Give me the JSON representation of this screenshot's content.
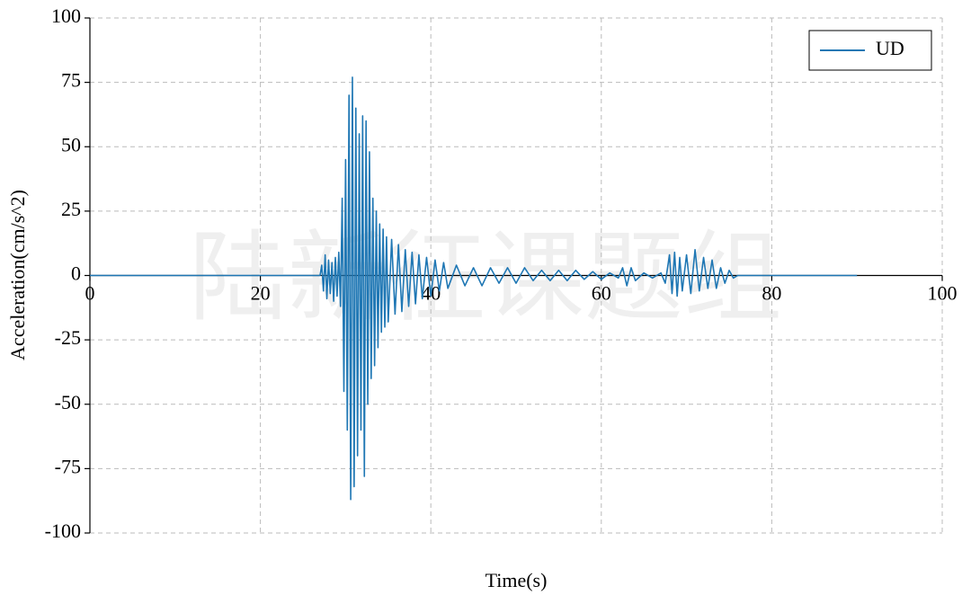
{
  "chart_data": {
    "type": "line",
    "xlabel": "Time(s)",
    "ylabel": "Acceleration(cm/s^2)",
    "watermark": "陆新征课题组",
    "xlim": [
      0,
      100
    ],
    "ylim": [
      -100,
      100
    ],
    "xticks": [
      0,
      20,
      40,
      60,
      80,
      100
    ],
    "yticks": [
      -100,
      -75,
      -50,
      -25,
      0,
      25,
      50,
      75,
      100
    ],
    "grid": true,
    "legend": "upper right",
    "x": [
      0,
      27,
      27.2,
      27.4,
      27.6,
      27.8,
      28,
      28.2,
      28.4,
      28.6,
      28.8,
      29,
      29.2,
      29.4,
      29.6,
      29.8,
      30,
      30.2,
      30.4,
      30.6,
      30.8,
      31,
      31.2,
      31.4,
      31.6,
      31.8,
      32,
      32.2,
      32.4,
      32.6,
      32.8,
      33,
      33.2,
      33.4,
      33.6,
      33.8,
      34,
      34.2,
      34.4,
      34.6,
      34.8,
      35,
      35.4,
      35.8,
      36.2,
      36.6,
      37,
      37.4,
      37.8,
      38.2,
      38.6,
      39,
      39.5,
      40,
      40.5,
      41,
      41.5,
      42,
      43,
      44,
      45,
      46,
      47,
      48,
      49,
      50,
      51,
      52,
      53,
      54,
      55,
      56,
      57,
      58,
      59,
      60,
      61,
      62,
      62.5,
      63,
      63.5,
      64,
      65,
      66,
      67,
      67.5,
      68,
      68.3,
      68.6,
      68.9,
      69.2,
      69.5,
      70,
      70.5,
      71,
      71.5,
      72,
      72.5,
      73,
      73.5,
      74,
      74.5,
      75,
      75.5,
      76,
      90
    ],
    "series": [
      {
        "name": "UD",
        "color": "#1f77b4",
        "values": [
          0,
          0,
          4,
          -6,
          8,
          -9,
          6,
          -7,
          5,
          -10,
          7,
          -8,
          9,
          -12,
          30,
          -45,
          45,
          -60,
          70,
          -87,
          77,
          -82,
          65,
          -70,
          55,
          -60,
          62,
          -78,
          60,
          -50,
          48,
          -40,
          30,
          -35,
          25,
          -28,
          20,
          -22,
          18,
          -20,
          15,
          -18,
          14,
          -15,
          12,
          -14,
          10,
          -12,
          9,
          -11,
          8,
          -9,
          7,
          -8,
          6,
          -6,
          5,
          -5,
          4,
          -4,
          3,
          -4,
          3,
          -3,
          3,
          -3,
          3,
          -2,
          2,
          -2,
          2,
          -2,
          2,
          -1.5,
          1.5,
          -1.5,
          1,
          -1,
          3,
          -4,
          3,
          -2,
          1,
          -1,
          1,
          -3,
          8,
          -7,
          9,
          -8,
          7,
          -6,
          8,
          -7,
          10,
          -6,
          7,
          -5,
          6,
          -5,
          3,
          -3,
          2,
          -1,
          0,
          0
        ]
      }
    ]
  }
}
